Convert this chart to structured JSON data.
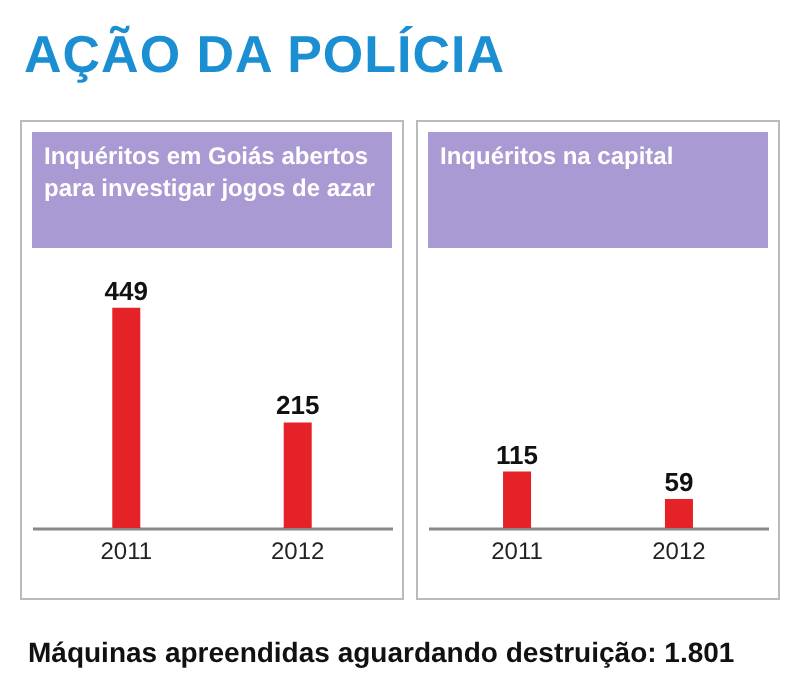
{
  "chart_data": [
    {
      "type": "bar",
      "title": "AÇÃO DA POLÍCIA",
      "subtitle": "Inquéritos em Goiás abertos para investigar jogos de azar",
      "categories": [
        "2011",
        "2012"
      ],
      "values": [
        449,
        215
      ],
      "color": "#e42228",
      "data_labels": true
    },
    {
      "type": "bar",
      "subtitle": "Inquéritos na capital",
      "categories": [
        "2011",
        "2012"
      ],
      "values": [
        115,
        59
      ],
      "color": "#e42228",
      "data_labels": true,
      "annotations": [
        "Máquinas apreendidas aguardando destruição: 1.801"
      ]
    }
  ]
}
